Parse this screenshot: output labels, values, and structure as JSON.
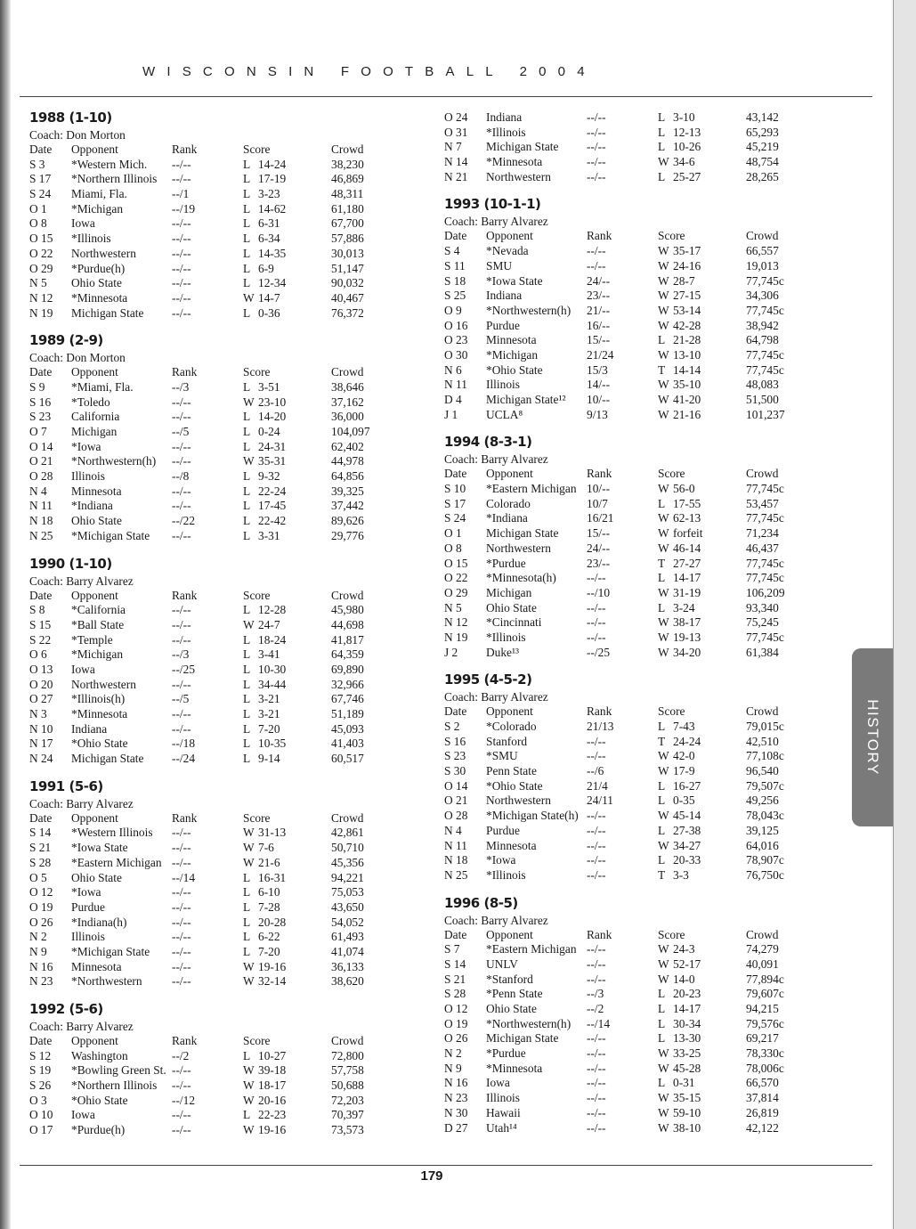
{
  "running_head": "WISCONSIN FOOTBALL 2004",
  "page_number": "179",
  "section_tab": "HISTORY",
  "columns_header": {
    "date": "Date",
    "opponent": "Opponent",
    "rank": "Rank",
    "score": "Score",
    "crowd": "Crowd"
  },
  "left_column": [
    {
      "title": "1988 (1-10)",
      "coach": "Coach: Don Morton",
      "games": [
        [
          "S 3",
          "*Western Mich.",
          "--/--",
          "L",
          "14-24",
          "38,230"
        ],
        [
          "S 17",
          "*Northern Illinois",
          "--/--",
          "L",
          "17-19",
          "46,869"
        ],
        [
          "S 24",
          "Miami, Fla.",
          "--/1",
          "L",
          "3-23",
          "48,311"
        ],
        [
          "O 1",
          "*Michigan",
          "--/19",
          "L",
          "14-62",
          "61,180"
        ],
        [
          "O 8",
          "Iowa",
          "--/--",
          "L",
          "6-31",
          "67,700"
        ],
        [
          "O 15",
          "*Illinois",
          "--/--",
          "L",
          "6-34",
          "57,886"
        ],
        [
          "O 22",
          "Northwestern",
          "--/--",
          "L",
          "14-35",
          "30,013"
        ],
        [
          "O 29",
          "*Purdue(h)",
          "--/--",
          "L",
          "6-9",
          "51,147"
        ],
        [
          "N 5",
          "Ohio State",
          "--/--",
          "L",
          "12-34",
          "90,032"
        ],
        [
          "N 12",
          "*Minnesota",
          "--/--",
          "W",
          "14-7",
          "40,467"
        ],
        [
          "N 19",
          "Michigan State",
          "--/--",
          "L",
          "0-36",
          "76,372"
        ]
      ]
    },
    {
      "title": "1989 (2-9)",
      "coach": "Coach: Don Morton",
      "games": [
        [
          "S 9",
          "*Miami, Fla.",
          "--/3",
          "L",
          "3-51",
          "38,646"
        ],
        [
          "S 16",
          "*Toledo",
          "--/--",
          "W",
          "23-10",
          "37,162"
        ],
        [
          "S 23",
          "California",
          "--/--",
          "L",
          "14-20",
          "36,000"
        ],
        [
          "O 7",
          "Michigan",
          "--/5",
          "L",
          "0-24",
          "104,097"
        ],
        [
          "O 14",
          "*Iowa",
          "--/--",
          "L",
          "24-31",
          "62,402"
        ],
        [
          "O 21",
          "*Northwestern(h)",
          "--/--",
          "W",
          "35-31",
          "44,978"
        ],
        [
          "O 28",
          "Illinois",
          "--/8",
          "L",
          "9-32",
          "64,856"
        ],
        [
          "N 4",
          "Minnesota",
          "--/--",
          "L",
          "22-24",
          "39,325"
        ],
        [
          "N 11",
          "*Indiana",
          "--/--",
          "L",
          "17-45",
          "37,442"
        ],
        [
          "N 18",
          "Ohio State",
          "--/22",
          "L",
          "22-42",
          "89,626"
        ],
        [
          "N 25",
          "*Michigan State",
          "--/--",
          "L",
          "3-31",
          "29,776"
        ]
      ]
    },
    {
      "title": "1990 (1-10)",
      "coach": "Coach: Barry Alvarez",
      "games": [
        [
          "S 8",
          "*California",
          "--/--",
          "L",
          "12-28",
          "45,980"
        ],
        [
          "S 15",
          "*Ball State",
          "--/--",
          "W",
          "24-7",
          "44,698"
        ],
        [
          "S 22",
          "*Temple",
          "--/--",
          "L",
          "18-24",
          "41,817"
        ],
        [
          "O 6",
          "*Michigan",
          "--/3",
          "L",
          "3-41",
          "64,359"
        ],
        [
          "O 13",
          "Iowa",
          "--/25",
          "L",
          "10-30",
          "69,890"
        ],
        [
          "O 20",
          "Northwestern",
          "--/--",
          "L",
          "34-44",
          "32,966"
        ],
        [
          "O 27",
          "*Illinois(h)",
          "--/5",
          "L",
          "3-21",
          "67,746"
        ],
        [
          "N 3",
          "*Minnesota",
          "--/--",
          "L",
          "3-21",
          "51,189"
        ],
        [
          "N 10",
          "Indiana",
          "--/--",
          "L",
          "7-20",
          "45,093"
        ],
        [
          "N 17",
          "*Ohio State",
          "--/18",
          "L",
          "10-35",
          "41,403"
        ],
        [
          "N 24",
          "Michigan State",
          "--/24",
          "L",
          "9-14",
          "60,517"
        ]
      ]
    },
    {
      "title": "1991 (5-6)",
      "coach": "Coach: Barry Alvarez",
      "games": [
        [
          "S 14",
          "*Western Illinois",
          "--/--",
          "W",
          "31-13",
          "42,861"
        ],
        [
          "S 21",
          "*Iowa State",
          "--/--",
          "W",
          "7-6",
          "50,710"
        ],
        [
          "S 28",
          "*Eastern Michigan",
          "--/--",
          "W",
          "21-6",
          "45,356"
        ],
        [
          "O 5",
          "Ohio State",
          "--/14",
          "L",
          "16-31",
          "94,221"
        ],
        [
          "O 12",
          "*Iowa",
          "--/--",
          "L",
          "6-10",
          "75,053"
        ],
        [
          "O 19",
          "Purdue",
          "--/--",
          "L",
          "7-28",
          "43,650"
        ],
        [
          "O 26",
          "*Indiana(h)",
          "--/--",
          "L",
          "20-28",
          "54,052"
        ],
        [
          "N 2",
          "Illinois",
          "--/--",
          "L",
          "6-22",
          "61,493"
        ],
        [
          "N 9",
          "*Michigan State",
          "--/--",
          "L",
          "7-20",
          "41,074"
        ],
        [
          "N 16",
          "Minnesota",
          "--/--",
          "W",
          "19-16",
          "36,133"
        ],
        [
          "N 23",
          "*Northwestern",
          "--/--",
          "W",
          "32-14",
          "38,620"
        ]
      ]
    },
    {
      "title": "1992 (5-6)",
      "coach": "Coach: Barry Alvarez",
      "games": [
        [
          "S 12",
          "Washington",
          "--/2",
          "L",
          "10-27",
          "72,800"
        ],
        [
          "S 19",
          "*Bowling Green St.",
          "--/--",
          "W",
          "39-18",
          "57,758"
        ],
        [
          "S 26",
          "*Northern Illinois",
          "--/--",
          "W",
          "18-17",
          "50,688"
        ],
        [
          "O 3",
          "*Ohio State",
          "--/12",
          "W",
          "20-16",
          "72,203"
        ],
        [
          "O 10",
          "Iowa",
          "--/--",
          "L",
          "22-23",
          "70,397"
        ],
        [
          "O 17",
          "*Purdue(h)",
          "--/--",
          "W",
          "19-16",
          "73,573"
        ]
      ]
    }
  ],
  "right_column": [
    {
      "title": "",
      "coach": "",
      "games": [
        [
          "O 24",
          "Indiana",
          "--/--",
          "L",
          "3-10",
          "43,142"
        ],
        [
          "O 31",
          "*Illinois",
          "--/--",
          "L",
          "12-13",
          "65,293"
        ],
        [
          "N 7",
          "Michigan State",
          "--/--",
          "L",
          "10-26",
          "45,219"
        ],
        [
          "N 14",
          "*Minnesota",
          "--/--",
          "W",
          "34-6",
          "48,754"
        ],
        [
          "N 21",
          "Northwestern",
          "--/--",
          "L",
          "25-27",
          "28,265"
        ]
      ]
    },
    {
      "title": "1993 (10-1-1)",
      "coach": "Coach: Barry Alvarez",
      "games": [
        [
          "S 4",
          "*Nevada",
          "--/--",
          "W",
          "35-17",
          "66,557"
        ],
        [
          "S 11",
          "SMU",
          "--/--",
          "W",
          "24-16",
          "19,013"
        ],
        [
          "S 18",
          "*Iowa State",
          "24/--",
          "W",
          "28-7",
          "77,745c"
        ],
        [
          "S 25",
          "Indiana",
          "23/--",
          "W",
          "27-15",
          "34,306"
        ],
        [
          "O 9",
          "*Northwestern(h)",
          "21/--",
          "W",
          "53-14",
          "77,745c"
        ],
        [
          "O 16",
          "Purdue",
          "16/--",
          "W",
          "42-28",
          "38,942"
        ],
        [
          "O 23",
          "Minnesota",
          "15/--",
          "L",
          "21-28",
          "64,798"
        ],
        [
          "O 30",
          "*Michigan",
          "21/24",
          "W",
          "13-10",
          "77,745c"
        ],
        [
          "N 6",
          "*Ohio State",
          "15/3",
          "T",
          "14-14",
          "77,745c"
        ],
        [
          "N 11",
          "Illinois",
          "14/--",
          "W",
          "35-10",
          "48,083"
        ],
        [
          "D 4",
          "Michigan State¹²",
          "10/--",
          "W",
          "41-20",
          "51,500"
        ],
        [
          "J 1",
          "UCLA⁸",
          "9/13",
          "W",
          "21-16",
          "101,237"
        ]
      ]
    },
    {
      "title": "1994 (8-3-1)",
      "coach": "Coach: Barry Alvarez",
      "games": [
        [
          "S 10",
          "*Eastern Michigan",
          "10/--",
          "W",
          "56-0",
          "77,745c"
        ],
        [
          "S 17",
          "Colorado",
          "10/7",
          "L",
          "17-55",
          "53,457"
        ],
        [
          "S 24",
          "*Indiana",
          "16/21",
          "W",
          "62-13",
          "77,745c"
        ],
        [
          "O 1",
          "Michigan State",
          "15/--",
          "W",
          "forfeit",
          "71,234"
        ],
        [
          "O 8",
          "Northwestern",
          "24/--",
          "W",
          "46-14",
          "46,437"
        ],
        [
          "O 15",
          "*Purdue",
          "23/--",
          "T",
          "27-27",
          "77,745c"
        ],
        [
          "O 22",
          "*Minnesota(h)",
          "--/--",
          "L",
          "14-17",
          "77,745c"
        ],
        [
          "O 29",
          "Michigan",
          "--/10",
          "W",
          "31-19",
          "106,209"
        ],
        [
          "N 5",
          "Ohio State",
          "--/--",
          "L",
          "3-24",
          "93,340"
        ],
        [
          "N 12",
          "*Cincinnati",
          "--/--",
          "W",
          "38-17",
          "75,245"
        ],
        [
          "N 19",
          "*Illinois",
          "--/--",
          "W",
          "19-13",
          "77,745c"
        ],
        [
          "J 2",
          "Duke¹³",
          "--/25",
          "W",
          "34-20",
          "61,384"
        ]
      ]
    },
    {
      "title": "1995 (4-5-2)",
      "coach": "Coach: Barry Alvarez",
      "games": [
        [
          "S 2",
          "*Colorado",
          "21/13",
          "L",
          "7-43",
          "79,015c"
        ],
        [
          "S 16",
          "Stanford",
          "--/--",
          "T",
          "24-24",
          "42,510"
        ],
        [
          "S 23",
          "*SMU",
          "--/--",
          "W",
          "42-0",
          "77,108c"
        ],
        [
          "S 30",
          "Penn State",
          "--/6",
          "W",
          "17-9",
          "96,540"
        ],
        [
          "O 14",
          "*Ohio State",
          "21/4",
          "L",
          "16-27",
          "79,507c"
        ],
        [
          "O 21",
          "Northwestern",
          "24/11",
          "L",
          "0-35",
          "49,256"
        ],
        [
          "O 28",
          "*Michigan State(h)",
          "--/--",
          "W",
          "45-14",
          "78,043c"
        ],
        [
          "N 4",
          "Purdue",
          "--/--",
          "L",
          "27-38",
          "39,125"
        ],
        [
          "N 11",
          "Minnesota",
          "--/--",
          "W",
          "34-27",
          "64,016"
        ],
        [
          "N 18",
          "*Iowa",
          "--/--",
          "L",
          "20-33",
          "78,907c"
        ],
        [
          "N 25",
          "*Illinois",
          "--/--",
          "T",
          "3-3",
          "76,750c"
        ]
      ]
    },
    {
      "title": "1996 (8-5)",
      "coach": "Coach: Barry Alvarez",
      "games": [
        [
          "S 7",
          "*Eastern Michigan",
          "--/--",
          "W",
          "24-3",
          "74,279"
        ],
        [
          "S 14",
          "UNLV",
          "--/--",
          "W",
          "52-17",
          "40,091"
        ],
        [
          "S 21",
          "*Stanford",
          "--/--",
          "W",
          "14-0",
          "77,894c"
        ],
        [
          "S 28",
          "*Penn State",
          "--/3",
          "L",
          "20-23",
          "79,607c"
        ],
        [
          "O 12",
          "Ohio State",
          "--/2",
          "L",
          "14-17",
          "94,215"
        ],
        [
          "O 19",
          "*Northwestern(h)",
          "--/14",
          "L",
          "30-34",
          "79,576c"
        ],
        [
          "O 26",
          "Michigan State",
          "--/--",
          "L",
          "13-30",
          "69,217"
        ],
        [
          "N 2",
          "*Purdue",
          "--/--",
          "W",
          "33-25",
          "78,330c"
        ],
        [
          "N 9",
          "*Minnesota",
          "--/--",
          "W",
          "45-28",
          "78,006c"
        ],
        [
          "N 16",
          "Iowa",
          "--/--",
          "L",
          "0-31",
          "66,570"
        ],
        [
          "N 23",
          "Illinois",
          "--/--",
          "W",
          "35-15",
          "37,814"
        ],
        [
          "N 30",
          "Hawaii",
          "--/--",
          "W",
          "59-10",
          "26,819"
        ],
        [
          "D 27",
          "Utah¹⁴",
          "--/--",
          "W",
          "38-10",
          "42,122"
        ]
      ]
    }
  ]
}
